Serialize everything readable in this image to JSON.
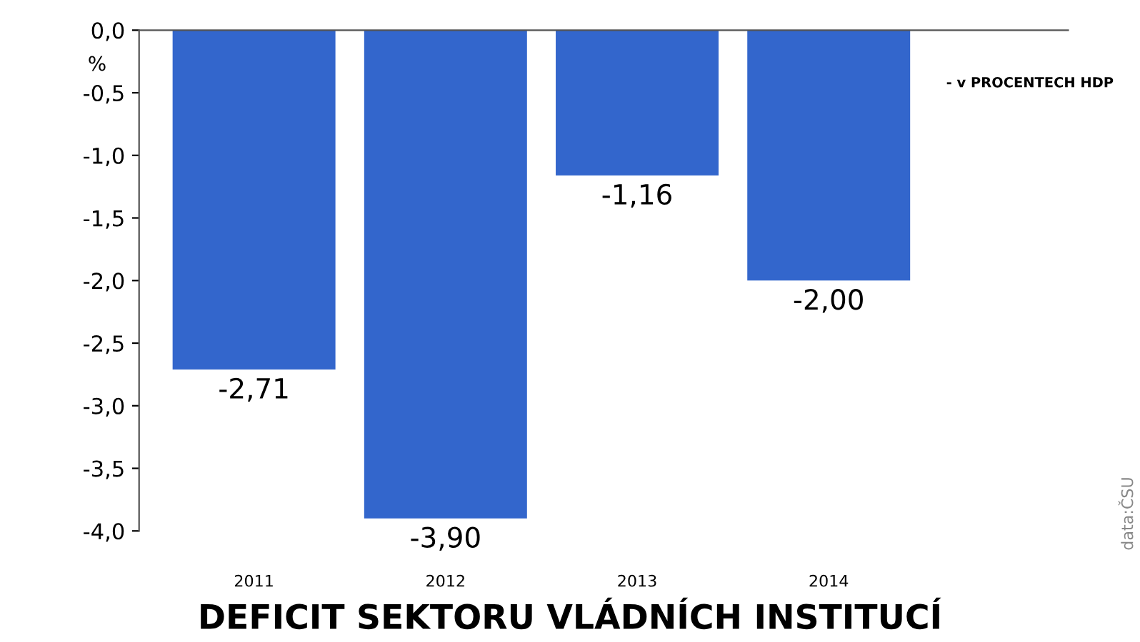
{
  "chart_data": {
    "type": "bar",
    "title": "DEFICIT SEKTORU VLÁDNÍCH INSTITUCÍ",
    "ylabel": "%",
    "categories": [
      "2011",
      "2012",
      "2013",
      "2014"
    ],
    "values": [
      -2.71,
      -3.9,
      -1.16,
      -2.0
    ],
    "value_labels": [
      "-2,71",
      "-3,90",
      "-1,16",
      "-2,00"
    ],
    "color": "#3366cc",
    "ylim": [
      -4.0,
      0.0
    ],
    "yticks": [
      {
        "value": 0.0,
        "label": "0,0"
      },
      {
        "value": -0.5,
        "label": "-0,5"
      },
      {
        "value": -1.0,
        "label": "-1,0"
      },
      {
        "value": -1.5,
        "label": "-1,5"
      },
      {
        "value": -2.0,
        "label": "-2,0"
      },
      {
        "value": -2.5,
        "label": "-2,5"
      },
      {
        "value": -3.0,
        "label": "-3,0"
      },
      {
        "value": -3.5,
        "label": "-3,5"
      },
      {
        "value": -4.0,
        "label": "-4,0"
      }
    ],
    "annotations": [
      "- v PROCENTECH HDP",
      "data:ČSU"
    ],
    "grid": false
  }
}
